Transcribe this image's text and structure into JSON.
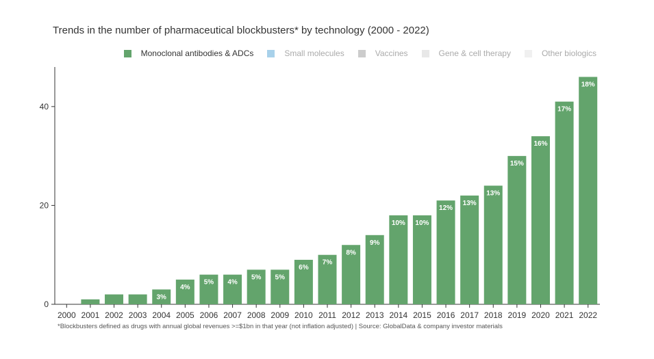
{
  "title": "Trends in the number of pharmaceutical blockbusters* by technology (2000 - 2022)",
  "footnote": "*Blockbusters defined as drugs with annual global revenues >=$1bn in that year (not inflation adjusted) | Source: GlobalData & company investor materials",
  "legend": [
    {
      "label": "Monoclonal antibodies & ADCs",
      "color": "#63a46c",
      "active": true
    },
    {
      "label": "Small molecules",
      "color": "#a8d1ea",
      "active": false
    },
    {
      "label": "Vaccines",
      "color": "#cccccc",
      "active": false
    },
    {
      "label": "Gene & cell therapy",
      "color": "#e8e8e8",
      "active": false
    },
    {
      "label": "Other biologics",
      "color": "#f0f0f0",
      "active": false
    }
  ],
  "chart_data": {
    "type": "bar",
    "title": "Trends in the number of pharmaceutical blockbusters* by technology (2000 - 2022)",
    "xlabel": "",
    "ylabel": "",
    "ylim": [
      0,
      48
    ],
    "yticks": [
      0,
      20,
      40
    ],
    "grid": false,
    "legend_position": "top-right",
    "categories": [
      "2000",
      "2001",
      "2002",
      "2003",
      "2004",
      "2005",
      "2006",
      "2007",
      "2008",
      "2009",
      "2010",
      "2011",
      "2012",
      "2013",
      "2014",
      "2015",
      "2016",
      "2017",
      "2018",
      "2019",
      "2020",
      "2021",
      "2022"
    ],
    "series": [
      {
        "name": "Monoclonal antibodies & ADCs",
        "color": "#63a46c",
        "values": [
          0,
          1,
          2,
          2,
          3,
          5,
          6,
          6,
          7,
          7,
          9,
          10,
          12,
          14,
          18,
          18,
          21,
          22,
          24,
          30,
          34,
          41,
          46
        ],
        "labels": [
          "",
          "",
          "",
          "",
          "3%",
          "4%",
          "5%",
          "4%",
          "5%",
          "5%",
          "6%",
          "7%",
          "8%",
          "9%",
          "10%",
          "10%",
          "12%",
          "13%",
          "13%",
          "15%",
          "16%",
          "17%",
          "18%"
        ]
      }
    ]
  }
}
